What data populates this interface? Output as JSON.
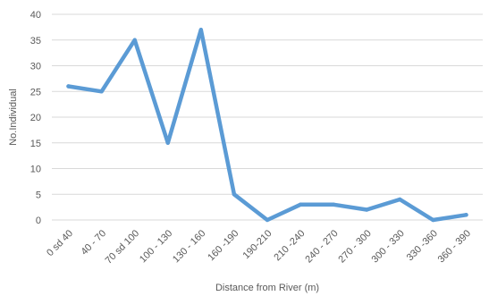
{
  "chart_data": {
    "type": "line",
    "title": "",
    "xlabel": "Distance from River (m)",
    "ylabel": "No.Individual",
    "categories": [
      "0 sd 40",
      "40 - 70",
      "70 sd 100",
      "100 - 130",
      "130 - 160",
      "160 -190",
      "190-210",
      "210 -240",
      "240 - 270",
      "270 - 300",
      "300 - 330",
      "330 -360",
      "360 - 390"
    ],
    "series": [
      {
        "values": [
          26,
          25,
          35,
          15,
          37,
          5,
          0,
          3,
          3,
          2,
          4,
          0,
          1
        ]
      }
    ],
    "ylim": [
      0,
      40
    ],
    "yticks": [
      0,
      5,
      10,
      15,
      20,
      25,
      30,
      35,
      40
    ],
    "grid": true,
    "legend": "none",
    "colors": {
      "line": "#5B9BD5",
      "grid": "#d9d9d9",
      "text": "#595959"
    }
  }
}
